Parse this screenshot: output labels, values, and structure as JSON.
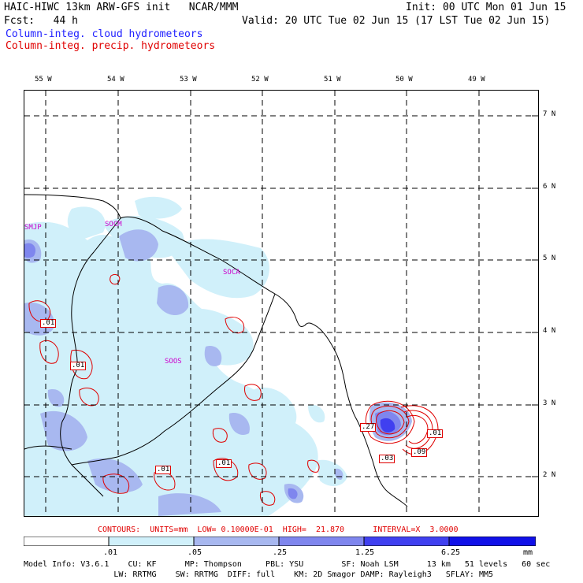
{
  "header": {
    "line1_left": "HAIC-HIWC 13km ARW-GFS init   NCAR/MMM",
    "line1_right": "Init: 00 UTC Mon 01 Jun 15",
    "line2_left": "Fcst:   44 h",
    "line2_right": "Valid: 20 UTC Tue 02 Jun 15 (17 LST Tue 02 Jun 15)",
    "field1": "Column-integ. cloud hydrometeors",
    "field2": "Column-integ. precip. hydrometeors"
  },
  "colors": {
    "cloud_field": "#2020ff",
    "precip_field": "#e00000",
    "station": "#cc00cc",
    "shade_levels": [
      "#ffffff",
      "#d0f0fa",
      "#a8b8f0",
      "#7f86ee",
      "#4040f0",
      "#1010e8"
    ]
  },
  "map": {
    "lon_labels": [
      "55 W",
      "54 W",
      "53 W",
      "52 W",
      "51 W",
      "50 W",
      "49 W"
    ],
    "lat_labels": [
      "7 N",
      "6 N",
      "5 N",
      "4 N",
      "3 N",
      "2 N"
    ],
    "stations": [
      "SMJP",
      "SOCM",
      "SOCA",
      "SOOS"
    ],
    "contour_labels": [
      ".01",
      ".01",
      ".01",
      ".01",
      ".27",
      ".01",
      ".03",
      ".09"
    ]
  },
  "contour_info": {
    "text": "CONTOURS:  UNITS=mm  LOW= 0.10000E-01  HIGH=  21.870      INTERVAL=X  3.0000"
  },
  "colorbar": {
    "labels": [
      ".01",
      ".05",
      ".25",
      "1.25",
      "6.25"
    ],
    "units": "mm"
  },
  "model_info": {
    "line1": "Model Info: V3.6.1    CU: KF      MP: Thompson     PBL: YSU        SF: Noah LSM      13 km   51 levels   60 sec",
    "line2": "                   LW: RRTMG    SW: RRTMG  DIFF: full    KM: 2D Smagor DAMP: Rayleigh3   SFLAY: MM5"
  }
}
